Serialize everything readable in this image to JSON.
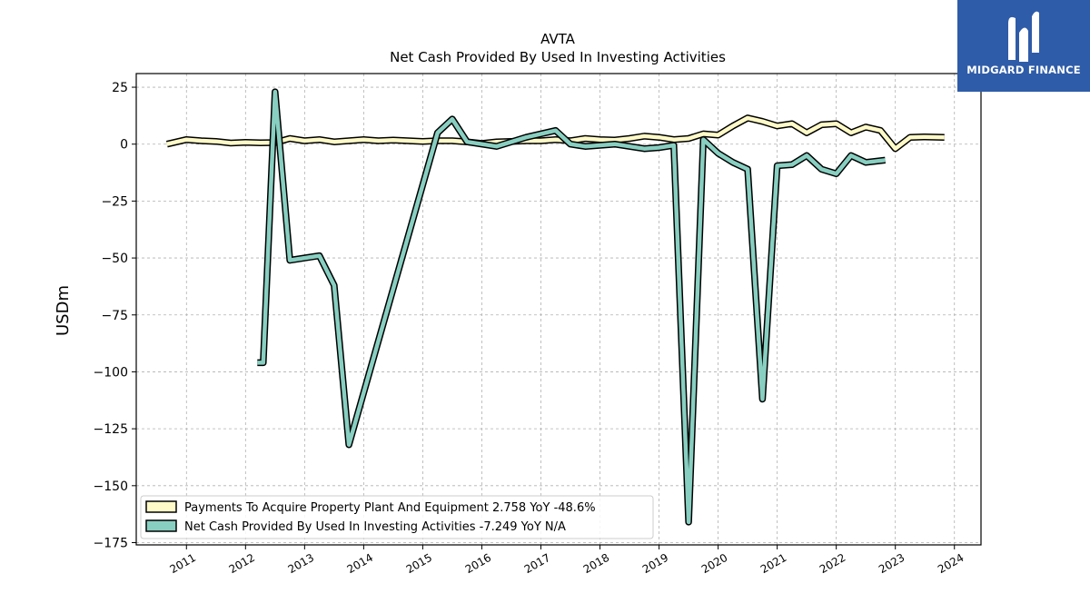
{
  "brand": {
    "name": "MIDGARD FINANCE",
    "logo_color": "#2f5ca8"
  },
  "chart_data": {
    "type": "line",
    "title": "AVTA",
    "subtitle": "Net Cash Provided By Used In Investing Activities",
    "ylabel": "USDm",
    "xlabel": "",
    "ylim": [
      -176,
      31
    ],
    "xlim": [
      2010.15,
      2024.45
    ],
    "yticks": [
      25,
      0,
      -25,
      -50,
      -75,
      -100,
      -125,
      -150,
      -175
    ],
    "xticks": [
      2011,
      2012,
      2013,
      2014,
      2015,
      2016,
      2017,
      2018,
      2019,
      2020,
      2021,
      2022,
      2023,
      2024
    ],
    "grid": true,
    "legend_position": "lower-left",
    "series": [
      {
        "name": "Payments To Acquire Property Plant And Equipment",
        "legend_label": "Payments To Acquire Property Plant And Equipment  2.758 YoY -48.6%",
        "color": "#fffac8",
        "points": [
          [
            2010.67,
            0
          ],
          [
            2011.0,
            2.0
          ],
          [
            2011.25,
            1.5
          ],
          [
            2011.5,
            1.2
          ],
          [
            2011.75,
            0.5
          ],
          [
            2012.0,
            0.8
          ],
          [
            2012.25,
            0.6
          ],
          [
            2012.5,
            0.7
          ],
          [
            2012.75,
            2.5
          ],
          [
            2013.0,
            1.5
          ],
          [
            2013.25,
            2.0
          ],
          [
            2013.5,
            1.0
          ],
          [
            2013.75,
            1.5
          ],
          [
            2014.0,
            2.0
          ],
          [
            2014.25,
            1.5
          ],
          [
            2014.5,
            1.8
          ],
          [
            2014.75,
            1.5
          ],
          [
            2015.0,
            1.2
          ],
          [
            2015.25,
            1.5
          ],
          [
            2015.5,
            1.5
          ],
          [
            2015.75,
            1.0
          ],
          [
            2016.0,
            0.3
          ],
          [
            2016.25,
            1.0
          ],
          [
            2016.5,
            1.2
          ],
          [
            2016.75,
            1.5
          ],
          [
            2017.0,
            1.5
          ],
          [
            2017.25,
            2.0
          ],
          [
            2017.5,
            1.5
          ],
          [
            2017.75,
            2.5
          ],
          [
            2018.0,
            2.0
          ],
          [
            2018.25,
            1.8
          ],
          [
            2018.5,
            2.5
          ],
          [
            2018.75,
            3.5
          ],
          [
            2019.0,
            3.0
          ],
          [
            2019.25,
            2.0
          ],
          [
            2019.5,
            2.5
          ],
          [
            2019.75,
            4.5
          ],
          [
            2020.0,
            4.0
          ],
          [
            2020.25,
            8.0
          ],
          [
            2020.5,
            11.5
          ],
          [
            2020.75,
            10.0
          ],
          [
            2021.0,
            8.0
          ],
          [
            2021.25,
            9.0
          ],
          [
            2021.5,
            5.0
          ],
          [
            2021.75,
            8.5
          ],
          [
            2022.0,
            9.0
          ],
          [
            2022.25,
            5.0
          ],
          [
            2022.5,
            7.5
          ],
          [
            2022.75,
            6.0
          ],
          [
            2023.0,
            -2.0
          ],
          [
            2023.25,
            3.0
          ],
          [
            2023.5,
            3.2
          ],
          [
            2023.83,
            3.0
          ]
        ]
      },
      {
        "name": "Net Cash Provided By Used In Investing Activities",
        "legend_label": "Net Cash Provided By Used In Investing Activities  -7.249 YoY N/A",
        "color": "#88cfc1",
        "points": [
          [
            2012.2,
            -96
          ],
          [
            2012.3,
            -96
          ],
          [
            2012.5,
            23
          ],
          [
            2012.75,
            -51
          ],
          [
            2013.0,
            -50
          ],
          [
            2013.25,
            -49
          ],
          [
            2013.5,
            -62
          ],
          [
            2013.75,
            -132
          ],
          [
            2015.25,
            5
          ],
          [
            2015.5,
            11
          ],
          [
            2015.75,
            1
          ],
          [
            2016.0,
            0
          ],
          [
            2016.25,
            -1
          ],
          [
            2016.5,
            1
          ],
          [
            2016.75,
            3
          ],
          [
            2017.0,
            4.5
          ],
          [
            2017.25,
            6
          ],
          [
            2017.5,
            0
          ],
          [
            2017.75,
            -1
          ],
          [
            2018.0,
            -0.5
          ],
          [
            2018.25,
            0
          ],
          [
            2018.5,
            -1
          ],
          [
            2018.75,
            -2
          ],
          [
            2019.0,
            -1.5
          ],
          [
            2019.25,
            -0.5
          ],
          [
            2019.5,
            -166
          ],
          [
            2019.75,
            2
          ],
          [
            2020.0,
            -4
          ],
          [
            2020.25,
            -8
          ],
          [
            2020.5,
            -11
          ],
          [
            2020.75,
            -112
          ],
          [
            2021.0,
            -9.5
          ],
          [
            2021.25,
            -9
          ],
          [
            2021.5,
            -5
          ],
          [
            2021.75,
            -11
          ],
          [
            2022.0,
            -13
          ],
          [
            2022.25,
            -5
          ],
          [
            2022.5,
            -8
          ],
          [
            2022.83,
            -7
          ]
        ]
      }
    ]
  }
}
